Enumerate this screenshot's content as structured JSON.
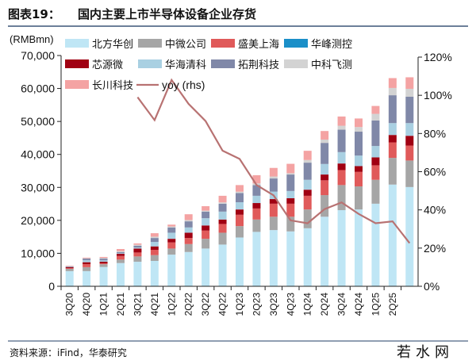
{
  "header": {
    "title_prefix": "图表19：",
    "title": "国内主要上市半导体设备企业存货"
  },
  "footer": {
    "source": "资料来源：iFind，华泰研究",
    "watermark": "若水网"
  },
  "colors": {
    "title_rule": "#6c7f99",
    "axis": "#222222",
    "line": "#b87272"
  },
  "chart_data": {
    "type": "bar",
    "stacked": true,
    "ylabel": "(RMBmn)",
    "ylim": [
      0,
      70000
    ],
    "y_ticks": [
      "0",
      "10,000",
      "20,000",
      "30,000",
      "40,000",
      "50,000",
      "60,000",
      "70,000"
    ],
    "y2lim": [
      0,
      120
    ],
    "y2_ticks": [
      "0%",
      "20%",
      "40%",
      "60%",
      "80%",
      "100%",
      "120%"
    ],
    "grid": false,
    "legend_placement": "top-left",
    "categories": [
      "3Q20",
      "4Q20",
      "1Q21",
      "2Q21",
      "3Q21",
      "4Q21",
      "1Q22",
      "2Q22",
      "3Q22",
      "4Q22",
      "1Q23",
      "2Q23",
      "3Q23",
      "4Q23",
      "1Q24",
      "2Q24",
      "3Q24",
      "4Q24",
      "1Q25",
      "2Q25",
      ""
    ],
    "series": [
      {
        "name": "北方华创",
        "color": "#bfe6f5",
        "values": [
          4600,
          4600,
          5850,
          7050,
          7450,
          7700,
          9600,
          10400,
          11450,
          12650,
          14800,
          16500,
          17050,
          16650,
          17600,
          21100,
          23100,
          23300,
          25050,
          30850,
          30100
        ]
      },
      {
        "name": "中微公司",
        "color": "#a6a6a6",
        "values": [
          700,
          1200,
          850,
          1050,
          1600,
          1750,
          1850,
          2400,
          2950,
          3600,
          3450,
          3750,
          4050,
          4450,
          5700,
          6550,
          7600,
          7000,
          7250,
          8100,
          8050
        ]
      },
      {
        "name": "盛美上海",
        "color": "#e05a5a",
        "values": [
          200,
          900,
          250,
          1100,
          1200,
          1600,
          1850,
          1850,
          2500,
          2650,
          3450,
          3350,
          3950,
          3950,
          4150,
          4500,
          4550,
          4400,
          4400,
          4700,
          4550
        ]
      },
      {
        "name": "华峰测控",
        "color": "#1a8fc8",
        "values": [
          0,
          0,
          0,
          0,
          0,
          0,
          0,
          0,
          0,
          0,
          0,
          0,
          0,
          0,
          0,
          0,
          0,
          0,
          0,
          0,
          0
        ]
      },
      {
        "name": "芯源微",
        "color": "#a00012",
        "values": [
          300,
          600,
          500,
          650,
          1200,
          1050,
          1100,
          1600,
          1550,
          1350,
          1600,
          1650,
          1400,
          1650,
          1850,
          1750,
          2000,
          1750,
          2400,
          2250,
          2950
        ]
      },
      {
        "name": "华海清科",
        "color": "#a9d0e2",
        "values": [
          100,
          600,
          400,
          200,
          300,
          1350,
          1850,
          1600,
          2200,
          2400,
          2200,
          2200,
          2250,
          2200,
          3000,
          3200,
          3450,
          3200,
          3450,
          3600,
          3850
        ]
      },
      {
        "name": "拓荆科技",
        "color": "#8088a8",
        "values": [
          150,
          500,
          550,
          300,
          550,
          1200,
          1600,
          1850,
          2000,
          2400,
          2800,
          3250,
          4000,
          5000,
          5200,
          6400,
          6800,
          7250,
          7750,
          8450,
          8000
        ]
      },
      {
        "name": "中科飞测",
        "color": "#d3d3d3",
        "values": [
          50,
          100,
          200,
          300,
          300,
          400,
          300,
          400,
          300,
          400,
          400,
          500,
          600,
          400,
          800,
          1000,
          1200,
          1400,
          2000,
          2200,
          2400
        ]
      },
      {
        "name": "长川科技",
        "color": "#f4a3a3",
        "values": [
          150,
          200,
          300,
          650,
          400,
          1050,
          550,
          1750,
          1350,
          2000,
          2000,
          2500,
          2600,
          2850,
          2800,
          2600,
          2800,
          2600,
          2400,
          3000,
          3500
        ]
      }
    ],
    "line": {
      "name": "yoy (rhs)",
      "axis": "right",
      "unit": "%",
      "values": [
        null,
        null,
        null,
        null,
        99,
        87,
        108,
        95.5,
        86.5,
        71,
        66.7,
        53,
        47.6,
        34.5,
        33,
        40.4,
        43.9,
        37.9,
        33,
        34,
        22.6
      ]
    }
  }
}
